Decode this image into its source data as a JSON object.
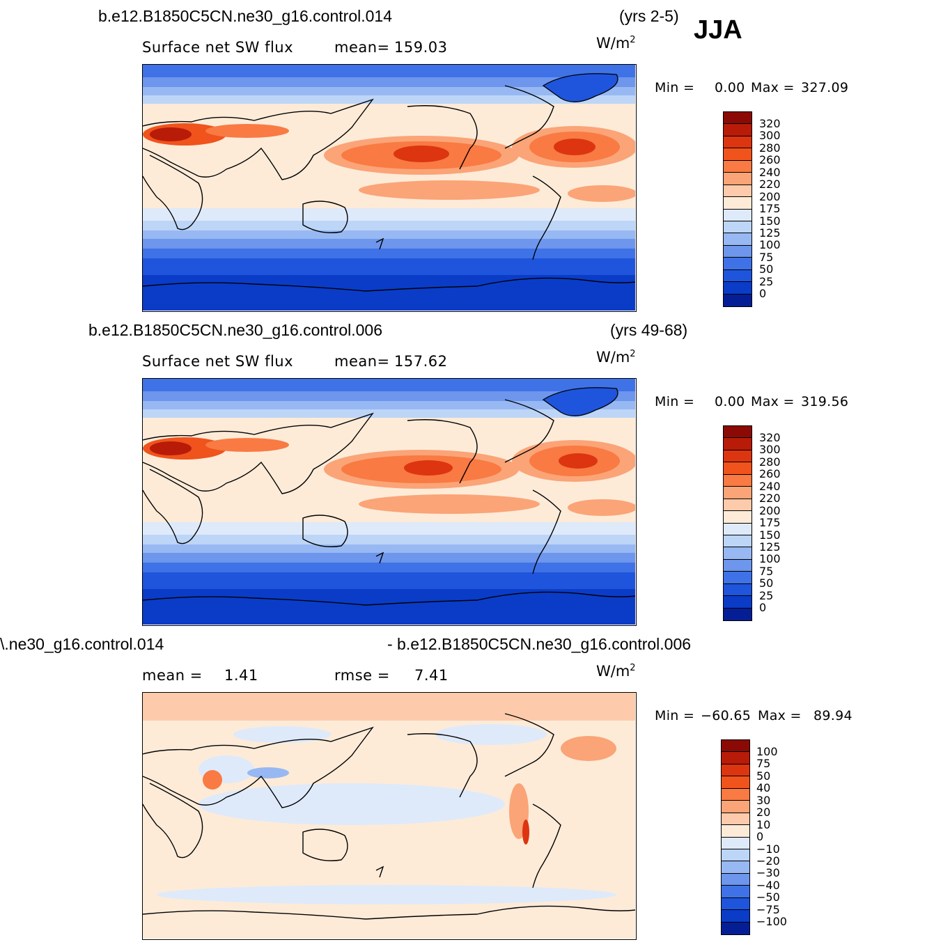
{
  "season": "JJA",
  "units_base": "W/m",
  "units_exp": "2",
  "panels": [
    {
      "id": "top",
      "case_title": "b.e12.B1850C5CN.ne30_g16.control.014",
      "years": "(yrs 2-5)",
      "variable": "Surface net SW flux",
      "mean_label": "mean=",
      "mean_value": "159.03",
      "min_label": "Min =",
      "min_value": "0.00",
      "max_label": "Max =",
      "max_value": "327.09"
    },
    {
      "id": "middle",
      "case_title": "b.e12.B1850C5CN.ne30_g16.control.006",
      "years": "(yrs 49-68)",
      "variable": "Surface net SW flux",
      "mean_label": "mean=",
      "mean_value": "157.62",
      "min_label": "Min =",
      "min_value": "0.00",
      "max_label": "Max =",
      "max_value": "319.56"
    },
    {
      "id": "diff",
      "case_title_left": "\\.ne30_g16.control.014",
      "case_title_right": "- b.e12.B1850C5CN.ne30_g16.control.006",
      "mean_label": "mean =",
      "mean_value": "1.41",
      "rmse_label": "rmse =",
      "rmse_value": "7.41",
      "min_label": "Min =",
      "min_value": "−60.65",
      "max_label": "Max =",
      "max_value": "89.94"
    }
  ],
  "colorbars": {
    "absolute": {
      "labels": [
        "320",
        "300",
        "280",
        "260",
        "240",
        "220",
        "200",
        "175",
        "150",
        "125",
        "100",
        "75",
        "50",
        "25",
        "0"
      ],
      "colors": [
        "#8b0a05",
        "#b81b08",
        "#dc3510",
        "#f0531c",
        "#f97a43",
        "#fba477",
        "#fdcbab",
        "#fdebd8",
        "#deeafa",
        "#bdd5f7",
        "#97b8f2",
        "#6d96ec",
        "#3f72e6",
        "#1f55dc",
        "#0a3cc8",
        "#051e96"
      ]
    },
    "difference": {
      "labels": [
        "100",
        "75",
        "50",
        "40",
        "30",
        "20",
        "10",
        "0",
        "−10",
        "−20",
        "−30",
        "−40",
        "−50",
        "−75",
        "−100"
      ],
      "colors": [
        "#8b0a05",
        "#b81b08",
        "#dc3510",
        "#f0531c",
        "#f97a43",
        "#fba477",
        "#fdcbab",
        "#fdebd8",
        "#deeafa",
        "#bdd5f7",
        "#97b8f2",
        "#6d96ec",
        "#3f72e6",
        "#1f55dc",
        "#0a3cc8",
        "#051e96"
      ]
    }
  }
}
